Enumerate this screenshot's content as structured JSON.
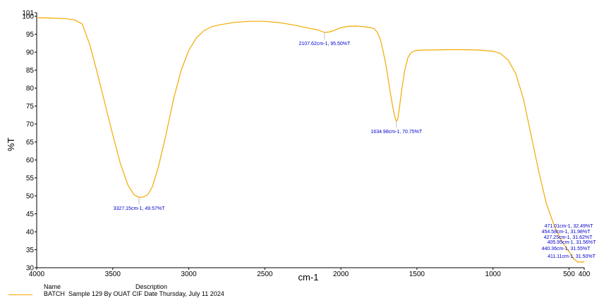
{
  "chart_data": {
    "type": "line",
    "xlabel": "cm-1",
    "ylabel": "%T",
    "xlim": [
      4000,
      400
    ],
    "ylim": [
      30,
      101
    ],
    "x_ticks": [
      4000,
      3500,
      3000,
      2500,
      2000,
      1500,
      1000,
      500,
      400
    ],
    "y_ticks": [
      30,
      35,
      40,
      45,
      50,
      55,
      60,
      65,
      70,
      75,
      80,
      85,
      90,
      95,
      100,
      101
    ],
    "grid": false,
    "line_color": "#f2a900",
    "annotation_color": "#0000cc",
    "series": [
      {
        "x": [
          4000,
          3900,
          3800,
          3750,
          3700,
          3650,
          3600,
          3550,
          3500,
          3450,
          3400,
          3360,
          3327.15,
          3300,
          3270,
          3240,
          3200,
          3150,
          3100,
          3050,
          3000,
          2950,
          2900,
          2850,
          2800,
          2700,
          2600,
          2500,
          2400,
          2300,
          2200,
          2150,
          2107.62,
          2080,
          2050,
          2000,
          1950,
          1900,
          1850,
          1800,
          1780,
          1760,
          1740,
          1720,
          1700,
          1680,
          1660,
          1645,
          1634.98,
          1625,
          1615,
          1600,
          1580,
          1560,
          1540,
          1520,
          1500,
          1450,
          1400,
          1300,
          1200,
          1100,
          1000,
          950,
          900,
          850,
          800,
          750,
          700,
          650,
          600,
          550,
          500,
          471.01,
          454.58,
          440.36,
          427.25,
          411.11,
          405.95,
          400
        ],
        "y": [
          99.6,
          99.5,
          99.3,
          99.0,
          97.8,
          92,
          84,
          75.5,
          67,
          59,
          53,
          50.3,
          49.57,
          49.7,
          50.3,
          52.5,
          58,
          67,
          77,
          85,
          90.5,
          94,
          96,
          97.1,
          97.6,
          98.3,
          98.6,
          98.6,
          98.2,
          97.5,
          96.6,
          96.2,
          95.5,
          95.6,
          96.0,
          96.8,
          97.2,
          97.3,
          97.1,
          96.8,
          96.5,
          95.5,
          93.5,
          89.8,
          85.5,
          80,
          75,
          72,
          70.75,
          71.5,
          74.5,
          79.5,
          85,
          88.4,
          89.8,
          90.3,
          90.5,
          90.6,
          90.6,
          90.7,
          90.7,
          90.6,
          90.3,
          89.6,
          87.8,
          84,
          77,
          67,
          57,
          48,
          42,
          37.5,
          34.5,
          32.49,
          31.98,
          31.55,
          31.62,
          31.5,
          31.56,
          31.8
        ]
      }
    ],
    "annotations": [
      {
        "x": 3327.15,
        "y": 49.57,
        "label": "3327.15cm-1, 49.57%T"
      },
      {
        "x": 2107.62,
        "y": 95.5,
        "label": "2107.62cm-1, 95.50%T"
      },
      {
        "x": 1634.98,
        "y": 70.75,
        "label": "1634.98cm-1, 70.75%T"
      },
      {
        "x": 471.01,
        "y": 32.49,
        "label": "471.01cm-1, 32.49%T"
      },
      {
        "x": 454.58,
        "y": 31.98,
        "label": "454.58cm-1, 31.98%T"
      },
      {
        "x": 427.25,
        "y": 31.62,
        "label": "427.25cm-1, 31.62%T"
      },
      {
        "x": 405.95,
        "y": 31.56,
        "label": "405.95cm-1, 31.56%T"
      },
      {
        "x": 440.36,
        "y": 31.55,
        "label": "440.36cm-1, 31.55%T"
      },
      {
        "x": 411.11,
        "y": 31.5,
        "label": "411.11cm-1, 31.50%T"
      }
    ]
  },
  "legend": {
    "name_header": "Name",
    "description_header": "Description",
    "entry_name": "BATCH",
    "entry_description": "Sample 129 By OUAT  CIF Date Thursday, July 11 2024"
  }
}
